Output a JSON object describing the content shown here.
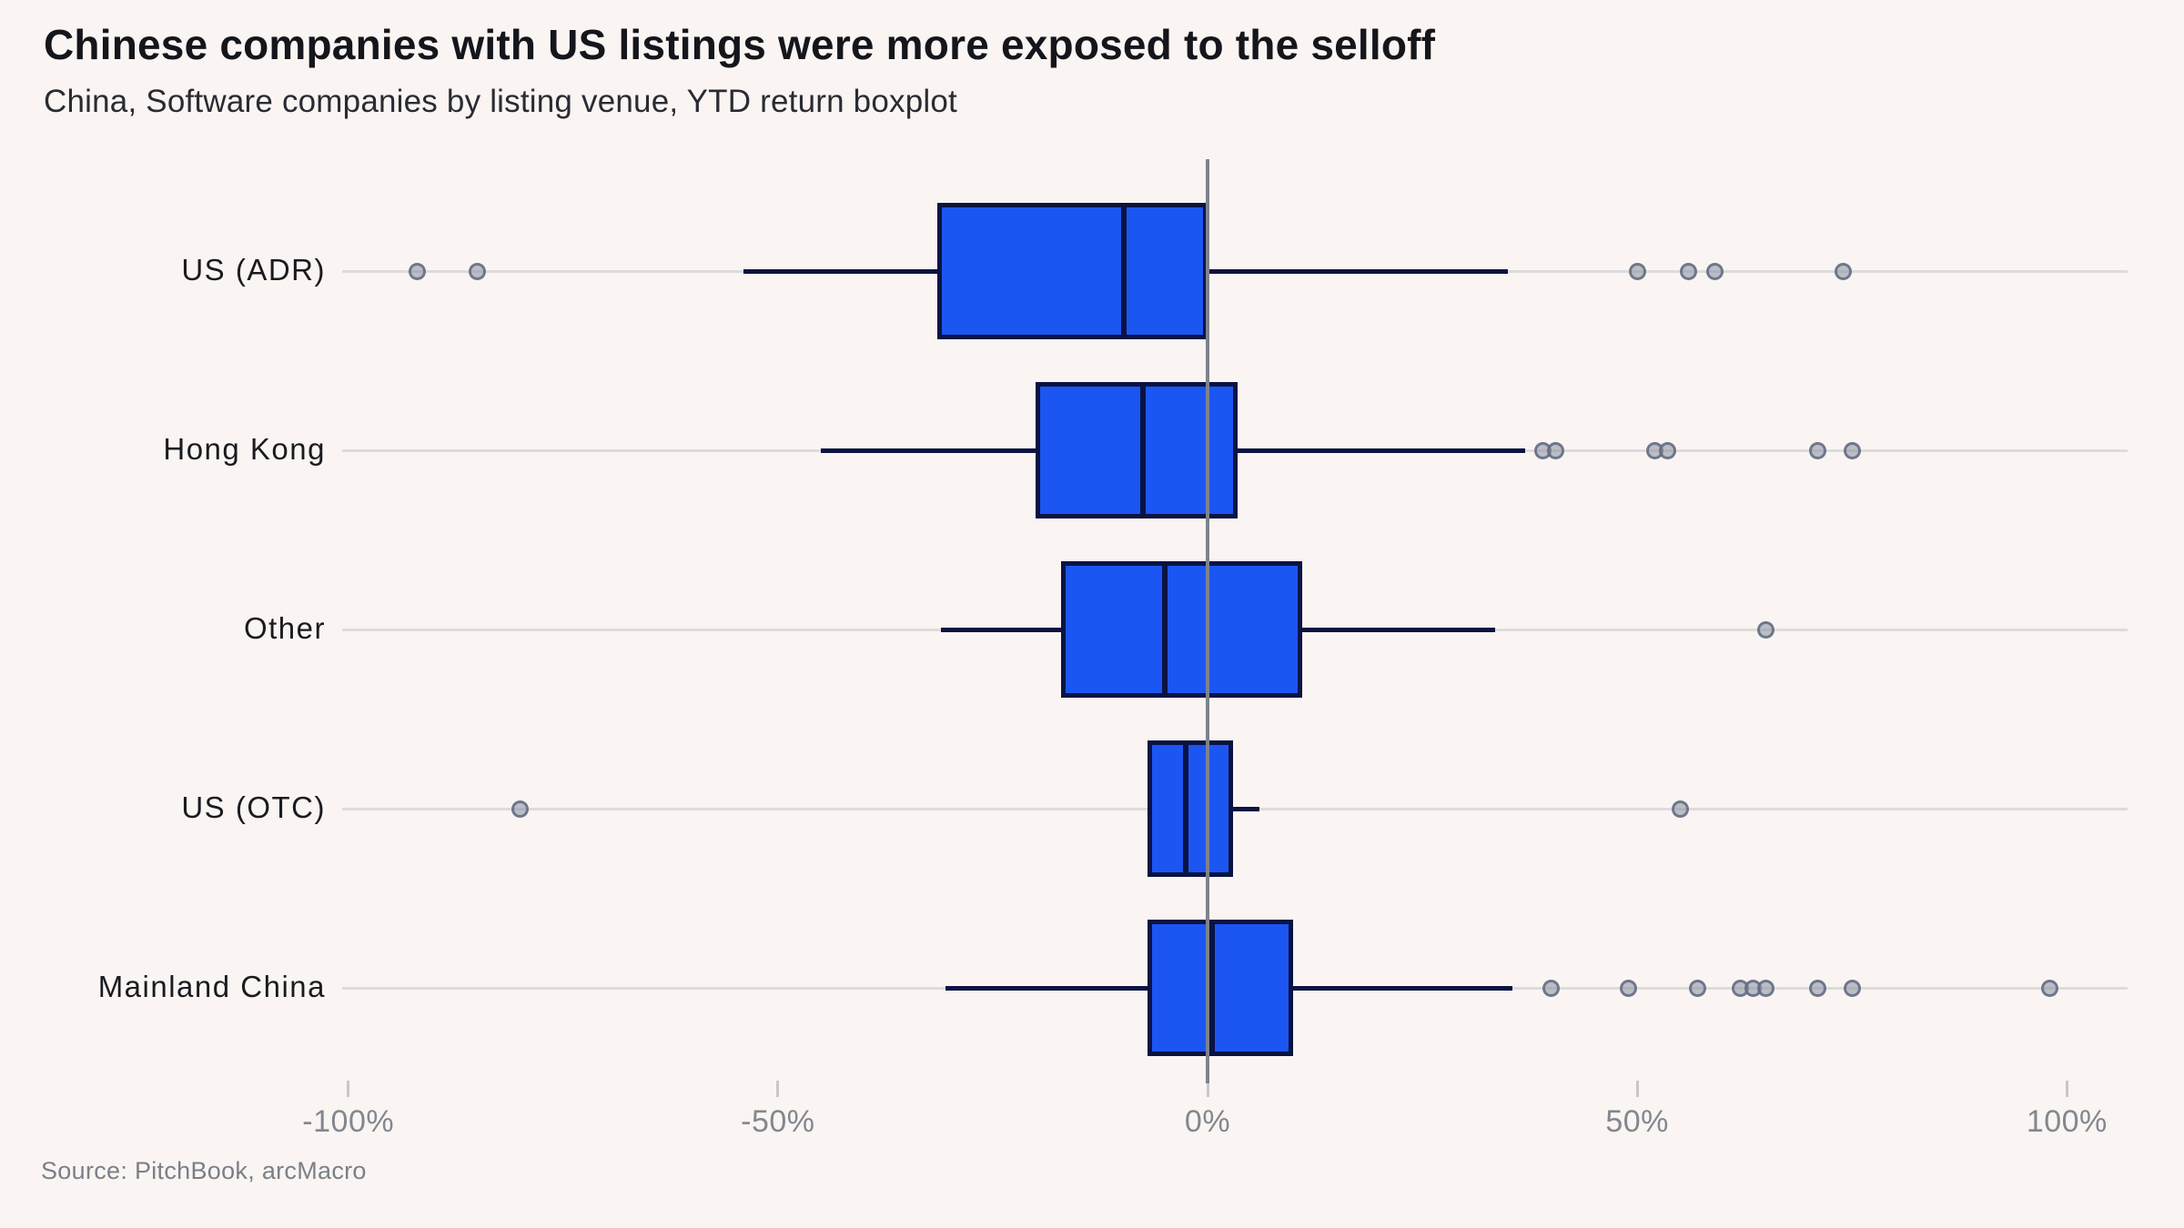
{
  "chart_data": {
    "type": "boxplot",
    "orientation": "horizontal",
    "title": "Chinese companies with US listings were more exposed to the selloff",
    "subtitle": "China, Software companies by listing venue, YTD return boxplot",
    "source": "Source: PitchBook, arcMacro",
    "unit": "percent YTD return",
    "xlim": [
      -100.7,
      107
    ],
    "tick_values": [
      -100,
      -50,
      0,
      50,
      100
    ],
    "tick_labels": [
      "-100%",
      "-50%",
      "0%",
      "50%",
      "100%"
    ],
    "grid": "horizontal-row-lines",
    "zero_reference_line": 0,
    "categories": [
      "US (ADR)",
      "Hong Kong",
      "Other",
      "US (OTC)",
      "Mainland China"
    ],
    "series": [
      {
        "name": "US (ADR)",
        "whisker_low": -54,
        "q1": -31.5,
        "median": -9.7,
        "q3": 0,
        "whisker_high": 35,
        "outliers": [
          -92,
          -85,
          50,
          56,
          59,
          74
        ]
      },
      {
        "name": "Hong Kong",
        "whisker_low": -45,
        "q1": -20,
        "median": -7.5,
        "q3": 3.5,
        "whisker_high": 37,
        "outliers": [
          39,
          40.5,
          52,
          53.5,
          71,
          75
        ]
      },
      {
        "name": "Other",
        "whisker_low": -31,
        "q1": -17,
        "median": -5,
        "q3": 11,
        "whisker_high": 33.5,
        "outliers": [
          65
        ]
      },
      {
        "name": "US (OTC)",
        "whisker_low": -7,
        "q1": -7,
        "median": -2.5,
        "q3": 3,
        "whisker_high": 6,
        "outliers": [
          -80,
          55
        ]
      },
      {
        "name": "Mainland China",
        "whisker_low": -30.5,
        "q1": -7,
        "median": 0.5,
        "q3": 10,
        "whisker_high": 35.5,
        "outliers": [
          40,
          49,
          57,
          62,
          63.5,
          65,
          71,
          75,
          98
        ]
      }
    ],
    "colors": {
      "background": "#faf5f2",
      "box_fill": "#1c56f2",
      "box_border": "#0a1342",
      "median_line": "#0a1342",
      "whisker_line": "#0a1342",
      "outlier_fill": "#8890a2",
      "outlier_stroke": "#606a80",
      "gridline": "#dcdcde",
      "zero_line": "#7e838c",
      "title_text": "#15161c",
      "subtitle_text": "#2a2b33",
      "axis_text": "#83878f",
      "source_text": "#7a7f89"
    }
  }
}
